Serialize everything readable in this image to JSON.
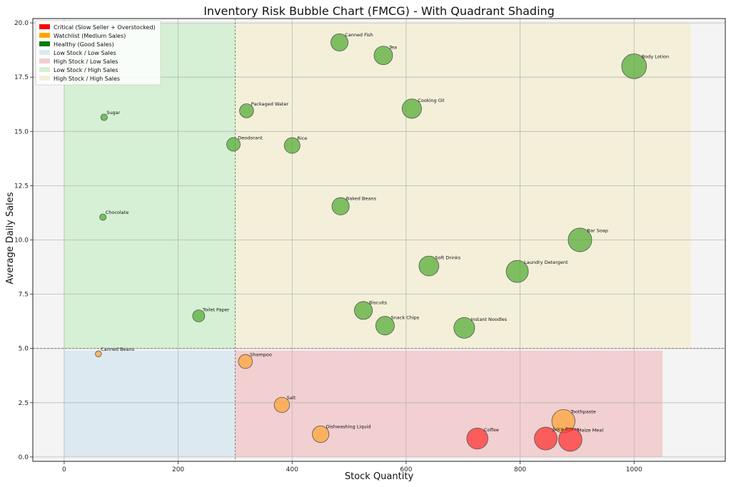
{
  "chart_data": {
    "type": "scatter",
    "title": "Inventory Risk Bubble Chart (FMCG) - With Quadrant Shading",
    "xlabel": "Stock Quantity",
    "ylabel": "Average Daily Sales",
    "xlim": [
      -55,
      1160
    ],
    "ylim": [
      -0.2,
      20.2
    ],
    "xticks": [
      0,
      200,
      400,
      600,
      800,
      1000
    ],
    "yticks": [
      0.0,
      2.5,
      5.0,
      7.5,
      10.0,
      12.5,
      15.0,
      17.5,
      20.0
    ],
    "grid": true,
    "stock_threshold": 300,
    "sales_threshold": 5.0,
    "legend_position": "top-left",
    "colors": {
      "Critical": "#ff2b2b",
      "Watchlist": "#ffa331",
      "Healthy": "#4caa2e",
      "low_low": "#dde9f0",
      "high_low": "#f2cfd0",
      "low_high": "#d5f0d4",
      "high_high": "#f4efd9",
      "background": "#f4f4f4"
    },
    "quadrants": [
      {
        "key": "low_low",
        "label": "Low Stock / Low Sales",
        "x": [
          0,
          300
        ],
        "y": [
          0,
          4.9
        ]
      },
      {
        "key": "high_low",
        "label": "High Stock / Low Sales",
        "x": [
          300,
          1050
        ],
        "y": [
          0,
          4.9
        ]
      },
      {
        "key": "low_high",
        "label": "Low Stock / High Sales",
        "x": [
          0,
          300
        ],
        "y": [
          5.0,
          20.0
        ]
      },
      {
        "key": "high_high",
        "label": "High Stock / High Sales",
        "x": [
          300,
          1100
        ],
        "y": [
          5.0,
          20.0
        ]
      }
    ],
    "legend": [
      {
        "label": "Critical (Slow Seller + Overstocked)",
        "kind": "category",
        "key": "Critical"
      },
      {
        "label": "Watchlist (Medium Sales)",
        "kind": "category",
        "key": "Watchlist"
      },
      {
        "label": "Healthy (Good Sales)",
        "kind": "category",
        "key": "Healthy"
      },
      {
        "label": "Low Stock / Low Sales",
        "kind": "quadrant",
        "key": "low_low"
      },
      {
        "label": "High Stock / Low Sales",
        "kind": "quadrant",
        "key": "high_low"
      },
      {
        "label": "Low Stock / High Sales",
        "kind": "quadrant",
        "key": "low_high"
      },
      {
        "label": "High Stock / High Sales",
        "kind": "quadrant",
        "key": "high_high"
      }
    ],
    "points": [
      {
        "name": "Canned Fish",
        "x": 483,
        "y": 19.1,
        "category": "Healthy"
      },
      {
        "name": "Tea",
        "x": 560,
        "y": 18.5,
        "category": "Healthy"
      },
      {
        "name": "Body Lotion",
        "x": 1000,
        "y": 18.0,
        "category": "Healthy"
      },
      {
        "name": "Sugar",
        "x": 70,
        "y": 15.65,
        "category": "Healthy"
      },
      {
        "name": "Packaged Water",
        "x": 320,
        "y": 15.95,
        "category": "Healthy"
      },
      {
        "name": "Cooking Oil",
        "x": 610,
        "y": 16.05,
        "category": "Healthy"
      },
      {
        "name": "Deodorant",
        "x": 297,
        "y": 14.4,
        "category": "Healthy"
      },
      {
        "name": "Rice",
        "x": 400,
        "y": 14.35,
        "category": "Healthy"
      },
      {
        "name": "Chocolate",
        "x": 68,
        "y": 11.05,
        "category": "Healthy"
      },
      {
        "name": "Baked Beans",
        "x": 485,
        "y": 11.55,
        "category": "Healthy"
      },
      {
        "name": "Bar Soap",
        "x": 905,
        "y": 10.0,
        "category": "Healthy"
      },
      {
        "name": "Soft Drinks",
        "x": 640,
        "y": 8.8,
        "category": "Healthy"
      },
      {
        "name": "Laundry Detergent",
        "x": 795,
        "y": 8.55,
        "category": "Healthy"
      },
      {
        "name": "Toilet Paper",
        "x": 236,
        "y": 6.5,
        "category": "Healthy"
      },
      {
        "name": "Biscuits",
        "x": 525,
        "y": 6.75,
        "category": "Healthy"
      },
      {
        "name": "Snack Chips",
        "x": 563,
        "y": 6.05,
        "category": "Healthy"
      },
      {
        "name": "Instant Noodles",
        "x": 702,
        "y": 5.95,
        "category": "Healthy"
      },
      {
        "name": "Canned Beans",
        "x": 60,
        "y": 4.75,
        "category": "Watchlist"
      },
      {
        "name": "Shampoo",
        "x": 318,
        "y": 4.4,
        "category": "Watchlist"
      },
      {
        "name": "Salt",
        "x": 382,
        "y": 2.4,
        "category": "Watchlist"
      },
      {
        "name": "Dishwashing Liquid",
        "x": 450,
        "y": 1.05,
        "category": "Watchlist"
      },
      {
        "name": "Toothpaste",
        "x": 876,
        "y": 1.65,
        "category": "Watchlist"
      },
      {
        "name": "Coffee",
        "x": 725,
        "y": 0.85,
        "category": "Critical"
      },
      {
        "name": "Juice Boxes",
        "x": 845,
        "y": 0.85,
        "category": "Critical"
      },
      {
        "name": "Maize Meal",
        "x": 888,
        "y": 0.8,
        "category": "Critical"
      }
    ]
  }
}
